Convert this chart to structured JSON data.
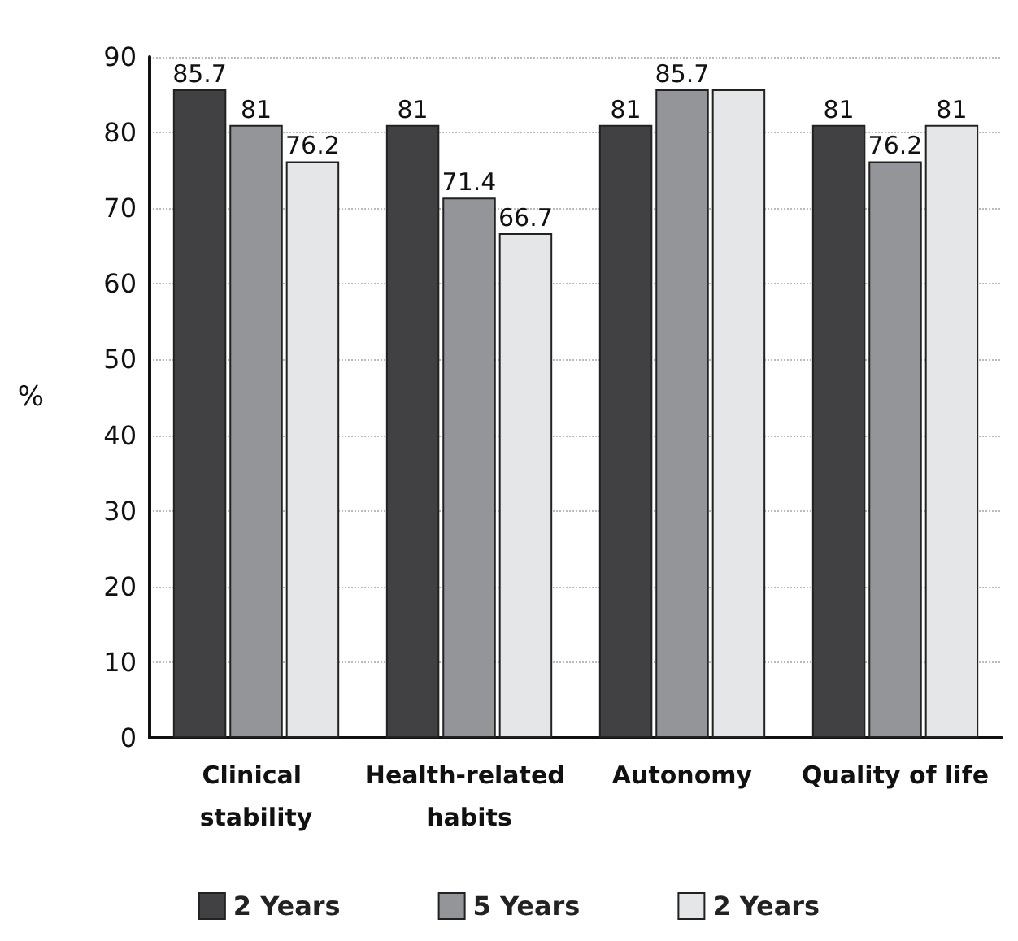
{
  "chart_data": {
    "type": "bar",
    "ylabel": "%",
    "categories": [
      "Clinical stability",
      "Health-related habits",
      "Autonomy",
      "Quality of life"
    ],
    "series": [
      {
        "name": "2 Years",
        "color": "#414143",
        "values": [
          85.7,
          81,
          81,
          81
        ],
        "value_labels": [
          "85.7",
          "81",
          "81",
          "81"
        ]
      },
      {
        "name": "5 Years",
        "color": "#939598",
        "values": [
          81,
          71.4,
          85.7,
          76.2
        ],
        "value_labels": [
          "81",
          "71.4",
          "85.7",
          "76.2"
        ]
      },
      {
        "name": "2 Years",
        "color": "#e5e6e7",
        "values": [
          76.2,
          66.7,
          85.7,
          81
        ],
        "value_labels": [
          "76.2",
          "66.7",
          null,
          "81"
        ]
      }
    ],
    "ylim": [
      0,
      90
    ],
    "yticks": [
      0,
      10,
      20,
      30,
      40,
      50,
      60,
      70,
      80,
      90
    ],
    "grid": "y",
    "legend": "bottom"
  }
}
